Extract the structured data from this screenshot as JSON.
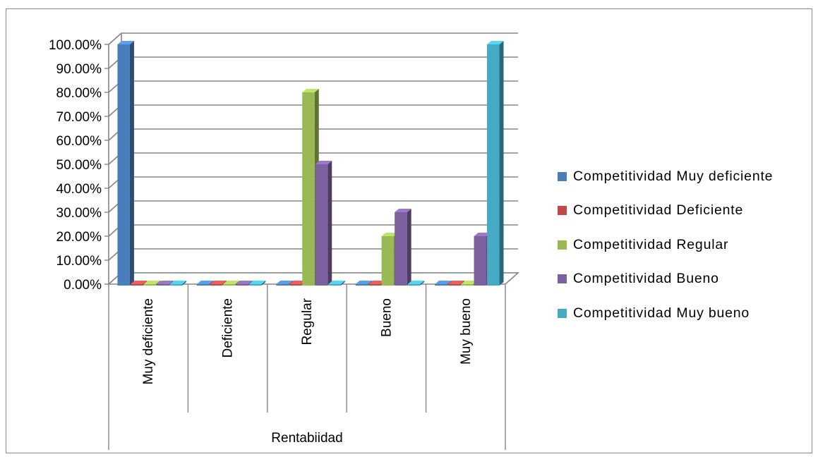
{
  "chart_data": {
    "type": "bar",
    "title": "",
    "xlabel": "Rentabiidad",
    "ylabel": "",
    "categories": [
      "Muy deficiente",
      "Deficiente",
      "Regular",
      "Bueno",
      "Muy bueno"
    ],
    "ylim": [
      0,
      1
    ],
    "yticks": [
      "0.00%",
      "10.00%",
      "20.00%",
      "30.00%",
      "40.00%",
      "50.00%",
      "60.00%",
      "70.00%",
      "80.00%",
      "90.00%",
      "100.00%"
    ],
    "grid": true,
    "legend_position": "right",
    "series": [
      {
        "name": "Competitividad Muy deficiente",
        "color": "#4a7ebb",
        "values": [
          1.0,
          0,
          0,
          0,
          0
        ]
      },
      {
        "name": "Competitividad Deficiente",
        "color": "#be4b48",
        "values": [
          0,
          0,
          0,
          0,
          0
        ]
      },
      {
        "name": "Competitividad Regular",
        "color": "#98b954",
        "values": [
          0,
          0,
          0.8,
          0.2,
          0
        ]
      },
      {
        "name": "Competitividad Bueno",
        "color": "#7d60a0",
        "values": [
          0,
          0,
          0.5,
          0.3,
          0.2
        ]
      },
      {
        "name": "Competitividad Muy bueno",
        "color": "#46aac4",
        "values": [
          0,
          0,
          0,
          0,
          1.0
        ]
      }
    ]
  }
}
